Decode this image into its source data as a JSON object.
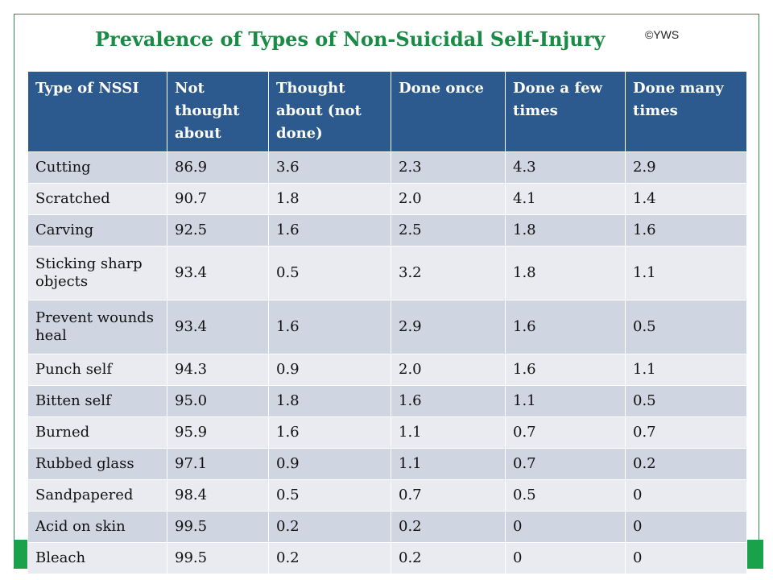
{
  "slide": {
    "title": "Prevalence of Types of Non-Suicidal Self-Injury",
    "copyright": "©YWS",
    "accent_color": "#1a8b45",
    "header_color": "#2d5a8e"
  },
  "table": {
    "headers": [
      "Type of NSSI",
      "Not thought about",
      "Thought about (not done)",
      "Done once",
      "Done a few times",
      "Done many times"
    ],
    "rows": [
      [
        "Cutting",
        "86.9",
        "3.6",
        "2.3",
        "4.3",
        "2.9"
      ],
      [
        "Scratched",
        "90.7",
        "1.8",
        "2.0",
        "4.1",
        "1.4"
      ],
      [
        "Carving",
        "92.5",
        "1.6",
        "2.5",
        "1.8",
        "1.6"
      ],
      [
        "Sticking sharp objects",
        "93.4",
        "0.5",
        "3.2",
        "1.8",
        "1.1"
      ],
      [
        "Prevent wounds heal",
        "93.4",
        "1.6",
        "2.9",
        "1.6",
        "0.5"
      ],
      [
        "Punch self",
        "94.3",
        "0.9",
        "2.0",
        "1.6",
        "1.1"
      ],
      [
        "Bitten self",
        "95.0",
        "1.8",
        "1.6",
        "1.1",
        "0.5"
      ],
      [
        "Burned",
        "95.9",
        "1.6",
        "1.1",
        "0.7",
        "0.7"
      ],
      [
        "Rubbed glass",
        "97.1",
        "0.9",
        "1.1",
        "0.7",
        "0.2"
      ],
      [
        "Sandpapered",
        "98.4",
        "0.5",
        "0.7",
        "0.5",
        "0"
      ],
      [
        "Acid on skin",
        "99.5",
        "0.2",
        "0.2",
        "0",
        "0"
      ],
      [
        "Bleach",
        "99.5",
        "0.2",
        "0.2",
        "0",
        "0"
      ]
    ]
  }
}
